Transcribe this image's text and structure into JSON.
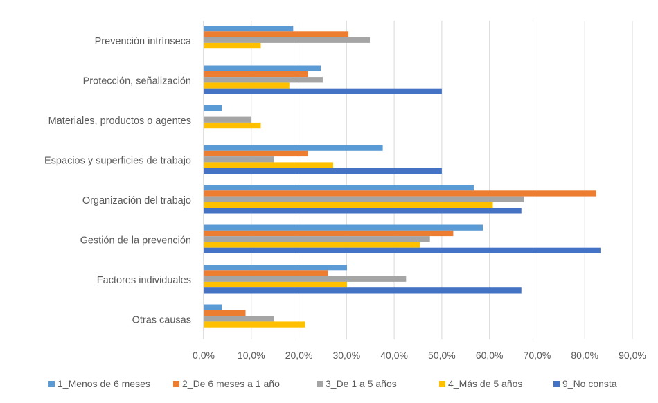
{
  "chart_data": {
    "type": "bar",
    "orientation": "horizontal",
    "title": "",
    "xlabel": "",
    "ylabel": "",
    "xlim": [
      0,
      90
    ],
    "x_ticks": [
      "0,0%",
      "10,0%",
      "20,0%",
      "30,0%",
      "40,0%",
      "50,0%",
      "60,0%",
      "70,0%",
      "80,0%",
      "90,0%"
    ],
    "grid": "vertical",
    "legend_position": "bottom",
    "categories": [
      "Prevención intrínseca",
      "Protección, señalización",
      "Materiales, productos o agentes",
      "Espacios y superficies de trabajo",
      "Organización del trabajo",
      "Gestión de la prevención",
      "Factores individuales",
      "Otras causas"
    ],
    "series": [
      {
        "name": "1_Menos de 6 meses",
        "color": "#5B9BD5",
        "values": [
          18.8,
          24.6,
          3.8,
          37.6,
          56.7,
          58.6,
          30.1,
          3.8
        ]
      },
      {
        "name": "2_De 6 meses a 1 año",
        "color": "#ED7D31",
        "values": [
          30.4,
          21.9,
          0,
          21.9,
          82.4,
          52.4,
          26.1,
          8.8
        ]
      },
      {
        "name": "3_De 1 a 5 años",
        "color": "#A5A5A5",
        "values": [
          34.9,
          25.0,
          10.0,
          14.8,
          67.2,
          47.5,
          42.5,
          14.8
        ]
      },
      {
        "name": "4_Más de 5 años",
        "color": "#FFC000",
        "values": [
          12.0,
          18.0,
          12.0,
          27.2,
          60.7,
          45.4,
          30.1,
          21.3
        ]
      },
      {
        "name": "9_No consta",
        "color": "#4472C4",
        "values": [
          0,
          50.0,
          0,
          50.0,
          66.7,
          83.3,
          66.7,
          0
        ]
      }
    ]
  }
}
